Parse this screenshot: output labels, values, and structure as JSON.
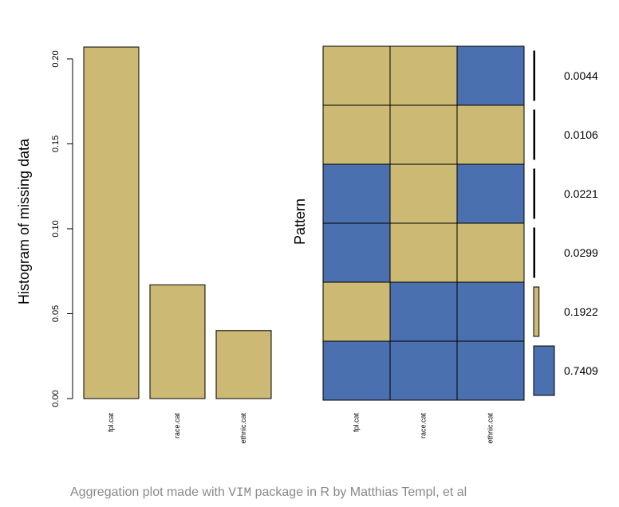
{
  "colors": {
    "observed": "#cbb974",
    "missing": "#4a70b0",
    "border": "#000000"
  },
  "chart_data": [
    {
      "type": "bar",
      "ylabel": "Histogram of missing data",
      "categories": [
        "fpl.cat",
        "race.cat",
        "ethnic.cat"
      ],
      "values": [
        0.207,
        0.067,
        0.04
      ],
      "ylim": [
        0,
        0.207
      ],
      "yticks": [
        "0.00",
        "0.05",
        "0.10",
        "0.15",
        "0.20"
      ],
      "grid": false
    },
    {
      "type": "heatmap",
      "ylabel": "Pattern",
      "columns": [
        "fpl.cat",
        "race.cat",
        "ethnic.cat"
      ],
      "patterns": [
        {
          "cells": [
            "observed",
            "observed",
            "missing"
          ],
          "proportion": 0.0044,
          "label": "0.0044"
        },
        {
          "cells": [
            "observed",
            "observed",
            "observed"
          ],
          "proportion": 0.0106,
          "label": "0.0106"
        },
        {
          "cells": [
            "missing",
            "observed",
            "missing"
          ],
          "proportion": 0.0221,
          "label": "0.0221"
        },
        {
          "cells": [
            "missing",
            "observed",
            "observed"
          ],
          "proportion": 0.0299,
          "label": "0.0299"
        },
        {
          "cells": [
            "observed",
            "missing",
            "missing"
          ],
          "proportion": 0.1922,
          "label": "0.1922"
        },
        {
          "cells": [
            "missing",
            "missing",
            "missing"
          ],
          "proportion": 0.7409,
          "label": "0.7409"
        }
      ]
    }
  ],
  "caption": {
    "before": "Aggregation plot made with ",
    "code": "VIM",
    "after": " package in R by Matthias Templ, et al"
  }
}
